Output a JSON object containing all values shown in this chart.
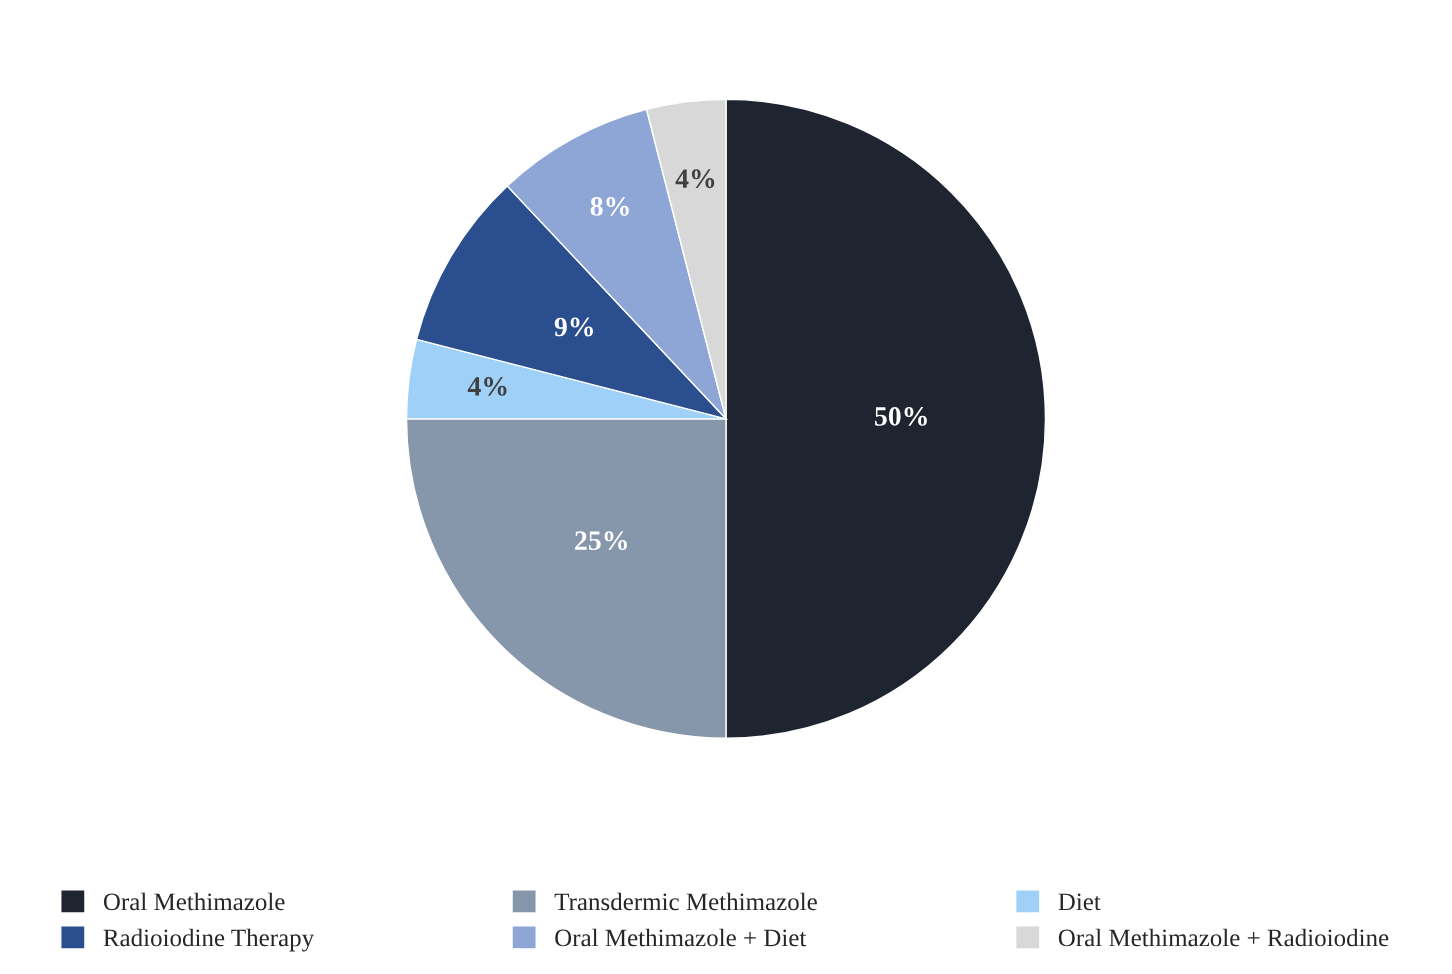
{
  "chart_data": {
    "type": "pie",
    "categories": [
      "Oral Methimazole",
      "Transdermic Methimazole",
      "Diet",
      "Radioiodine Therapy",
      "Oral Methimazole + Diet",
      "Oral Methimazole + Radioiodine"
    ],
    "values": [
      50,
      25,
      4,
      9,
      8,
      4
    ],
    "value_labels": [
      "50%",
      "25%",
      "4%",
      "9%",
      "8%",
      "4%"
    ],
    "colors": [
      "#1f2530",
      "#8797ab",
      "#9fd0f7",
      "#2a4e8e",
      "#8ea6d6",
      "#d8d8d8"
    ],
    "legend": "bottom"
  }
}
